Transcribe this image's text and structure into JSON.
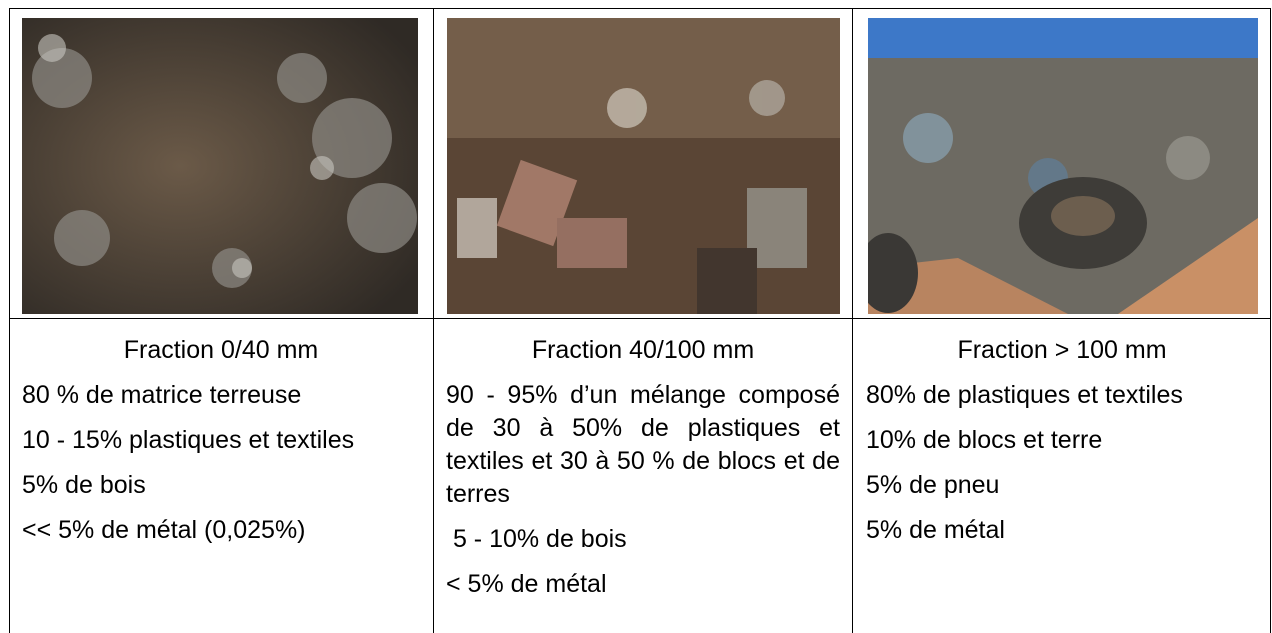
{
  "table": {
    "columns": [
      {
        "heading": "Fraction 0/40 mm",
        "items": [
          "80 % de matrice terreuse",
          "10 - 15% plastiques et textiles",
          "5% de bois",
          "<< 5% de métal (0,025%)"
        ]
      },
      {
        "heading": "Fraction 40/100 mm",
        "items": [
          "90 - 95% d’un mélange composé de 30 à 50% de plastiques et textiles et 30 à 50 % de blocs et de terres",
          " 5 - 10% de bois",
          "< 5% de métal"
        ]
      },
      {
        "heading": "Fraction > 100 mm",
        "items": [
          "80% de plastiques et textiles",
          "10% de blocs et terre",
          "5% de pneu",
          "5% de métal"
        ]
      }
    ]
  }
}
